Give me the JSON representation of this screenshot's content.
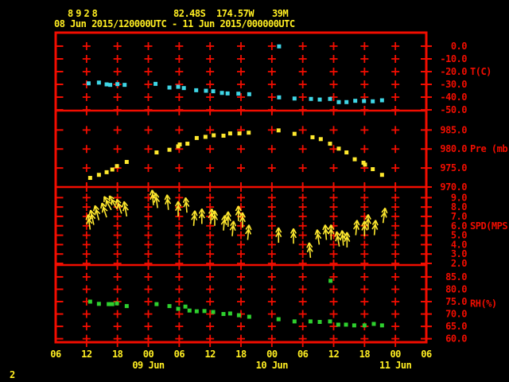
{
  "header": {
    "station_id": "8928",
    "latitude": "82.48S",
    "longitude": "174.57W",
    "elevation": "39M",
    "time_range": "08 Jun 2015/120000UTC - 11 Jun 2015/000000UTC"
  },
  "footer": {
    "page_number": "2"
  },
  "colors": {
    "background": "#000000",
    "frame": "#f20d00",
    "title_text": "#ffee22",
    "time_axis_text": "#ffee22",
    "temperature": "#3fd6e6",
    "pressure": "#ffe92e",
    "wind": "#ffe92e",
    "humidity": "#2ed02e"
  },
  "time_axis": {
    "start_label_hour": 0,
    "end_label_hour": 72,
    "hour_labels": [
      "06",
      "12",
      "18",
      "00",
      "06",
      "12",
      "18",
      "00",
      "06",
      "12",
      "18",
      "00",
      "06"
    ],
    "hour_step": 6,
    "date_labels": [
      {
        "text": "09 Jun",
        "hour": 18
      },
      {
        "text": "10 Jun",
        "hour": 42
      },
      {
        "text": "11 Jun",
        "hour": 66
      }
    ]
  },
  "chart_data": [
    {
      "type": "scatter",
      "name": "temperature",
      "unit_label": "T(C)",
      "color_key": "temperature",
      "tick_values": [
        0,
        -10,
        -20,
        -30,
        -40,
        -50
      ],
      "tick_labels": [
        "0.0",
        "-10.0",
        "-20.0",
        "-30.0",
        "-40.0",
        "-50.0"
      ],
      "points_t_v": [
        [
          6.4,
          -29.2
        ],
        [
          8.4,
          -28.6
        ],
        [
          9.9,
          -30.0
        ],
        [
          10.6,
          -30.4
        ],
        [
          12.0,
          -29.8
        ],
        [
          13.4,
          -30.4
        ],
        [
          19.4,
          -29.6
        ],
        [
          22.1,
          -32.5
        ],
        [
          23.8,
          -31.9
        ],
        [
          24.9,
          -32.9
        ],
        [
          27.3,
          -34.6
        ],
        [
          29.2,
          -35.0
        ],
        [
          30.6,
          -35.4
        ],
        [
          32.3,
          -36.7
        ],
        [
          33.4,
          -37.1
        ],
        [
          35.5,
          -37.3
        ],
        [
          37.6,
          -37.7
        ],
        [
          43.4,
          -0.2
        ],
        [
          43.4,
          -40.2
        ],
        [
          46.4,
          -41.1
        ],
        [
          49.6,
          -41.4
        ],
        [
          51.3,
          -41.9
        ],
        [
          53.3,
          -41.4
        ],
        [
          55.0,
          -43.9
        ],
        [
          56.5,
          -43.9
        ],
        [
          58.2,
          -42.9
        ],
        [
          59.9,
          -43.1
        ],
        [
          61.6,
          -43.3
        ],
        [
          63.4,
          -42.5
        ]
      ]
    },
    {
      "type": "scatter",
      "name": "pressure",
      "unit_label": "Pre (mb)",
      "color_key": "pressure",
      "tick_values": [
        985,
        980,
        975,
        970
      ],
      "tick_labels": [
        "985.0",
        "980.0",
        "975.0",
        "970.0"
      ],
      "points_t_v": [
        [
          6.7,
          972.4
        ],
        [
          8.4,
          973.2
        ],
        [
          9.9,
          973.9
        ],
        [
          11.0,
          974.6
        ],
        [
          11.9,
          975.5
        ],
        [
          13.8,
          976.6
        ],
        [
          19.6,
          979.1
        ],
        [
          22.1,
          979.8
        ],
        [
          23.8,
          980.7
        ],
        [
          24.1,
          981.2
        ],
        [
          25.6,
          981.4
        ],
        [
          27.4,
          982.9
        ],
        [
          29.1,
          983.2
        ],
        [
          30.7,
          983.6
        ],
        [
          32.6,
          983.5
        ],
        [
          33.9,
          984.1
        ],
        [
          35.7,
          984.1
        ],
        [
          37.5,
          984.3
        ],
        [
          43.3,
          984.9
        ],
        [
          46.4,
          984.0
        ],
        [
          49.9,
          983.1
        ],
        [
          51.5,
          982.6
        ],
        [
          53.3,
          981.4
        ],
        [
          55.0,
          980.1
        ],
        [
          56.5,
          979.1
        ],
        [
          58.1,
          977.3
        ],
        [
          59.8,
          976.4
        ],
        [
          60.1,
          975.9
        ],
        [
          61.6,
          974.7
        ],
        [
          63.4,
          973.2
        ]
      ]
    },
    {
      "type": "wind_arrows",
      "name": "wind-speed",
      "unit_label": "SPD(MPS)",
      "color_key": "wind",
      "tick_values": [
        9,
        8,
        7,
        6,
        5,
        4,
        3,
        2
      ],
      "tick_labels": [
        "9.0",
        "8.0",
        "7.0",
        "6.0",
        "5.0",
        "4.0",
        "3.0",
        "2.0"
      ],
      "points_t_v_ang": [
        [
          6.7,
          5.6,
          -8
        ],
        [
          7.4,
          6.1,
          -12
        ],
        [
          8.4,
          6.6,
          -15
        ],
        [
          9.9,
          6.9,
          -18
        ],
        [
          10.8,
          7.7,
          -28
        ],
        [
          11.9,
          7.8,
          -30
        ],
        [
          12.8,
          7.3,
          -18
        ],
        [
          13.8,
          7.0,
          -10
        ],
        [
          19.0,
          8.2,
          -5
        ],
        [
          19.8,
          7.9,
          -8
        ],
        [
          21.9,
          7.7,
          -5
        ],
        [
          23.8,
          7.0,
          0
        ],
        [
          25.5,
          7.4,
          -5
        ],
        [
          26.8,
          6.0,
          5
        ],
        [
          28.4,
          6.2,
          0
        ],
        [
          30.1,
          6.2,
          5
        ],
        [
          30.9,
          6.0,
          0
        ],
        [
          32.6,
          5.5,
          5
        ],
        [
          33.5,
          5.9,
          0
        ],
        [
          34.3,
          4.9,
          5
        ],
        [
          35.5,
          6.5,
          0
        ],
        [
          36.3,
          5.8,
          0
        ],
        [
          37.3,
          4.5,
          5
        ],
        [
          43.3,
          4.2,
          0
        ],
        [
          46.2,
          4.1,
          0
        ],
        [
          49.5,
          2.6,
          -5
        ],
        [
          51.2,
          4.0,
          -8
        ],
        [
          52.6,
          4.5,
          -5
        ],
        [
          53.5,
          4.5,
          0
        ],
        [
          55.1,
          3.8,
          -10
        ],
        [
          55.9,
          3.9,
          -5
        ],
        [
          56.6,
          3.7,
          0
        ],
        [
          58.3,
          5.0,
          5
        ],
        [
          60.0,
          4.9,
          0
        ],
        [
          60.7,
          5.6,
          0
        ],
        [
          61.9,
          5.0,
          5
        ],
        [
          63.6,
          6.3,
          8
        ]
      ]
    },
    {
      "type": "scatter",
      "name": "relative-humidity",
      "unit_label": "RH(%)",
      "color_key": "humidity",
      "tick_values": [
        85,
        80,
        75,
        70,
        65,
        60
      ],
      "tick_labels": [
        "85.0",
        "80.0",
        "75.0",
        "70.0",
        "65.0",
        "60.0"
      ],
      "points_t_v": [
        [
          6.7,
          75.0
        ],
        [
          8.4,
          74.1
        ],
        [
          10.3,
          74.0
        ],
        [
          11.0,
          74.0
        ],
        [
          11.9,
          74.3
        ],
        [
          13.8,
          73.2
        ],
        [
          19.6,
          74.0
        ],
        [
          22.1,
          73.2
        ],
        [
          23.8,
          72.1
        ],
        [
          25.2,
          73.0
        ],
        [
          26.0,
          71.4
        ],
        [
          27.4,
          71.1
        ],
        [
          28.9,
          71.2
        ],
        [
          30.6,
          70.8
        ],
        [
          32.6,
          70.0
        ],
        [
          33.9,
          70.2
        ],
        [
          35.6,
          69.5
        ],
        [
          37.6,
          68.9
        ],
        [
          43.3,
          67.9
        ],
        [
          46.4,
          67.0
        ],
        [
          49.5,
          67.0
        ],
        [
          51.3,
          66.8
        ],
        [
          53.3,
          67.0
        ],
        [
          53.4,
          83.4
        ],
        [
          54.9,
          65.7
        ],
        [
          56.4,
          65.7
        ],
        [
          58.0,
          65.4
        ],
        [
          60.0,
          65.4
        ],
        [
          61.8,
          66.0
        ],
        [
          63.4,
          65.4
        ]
      ]
    }
  ]
}
